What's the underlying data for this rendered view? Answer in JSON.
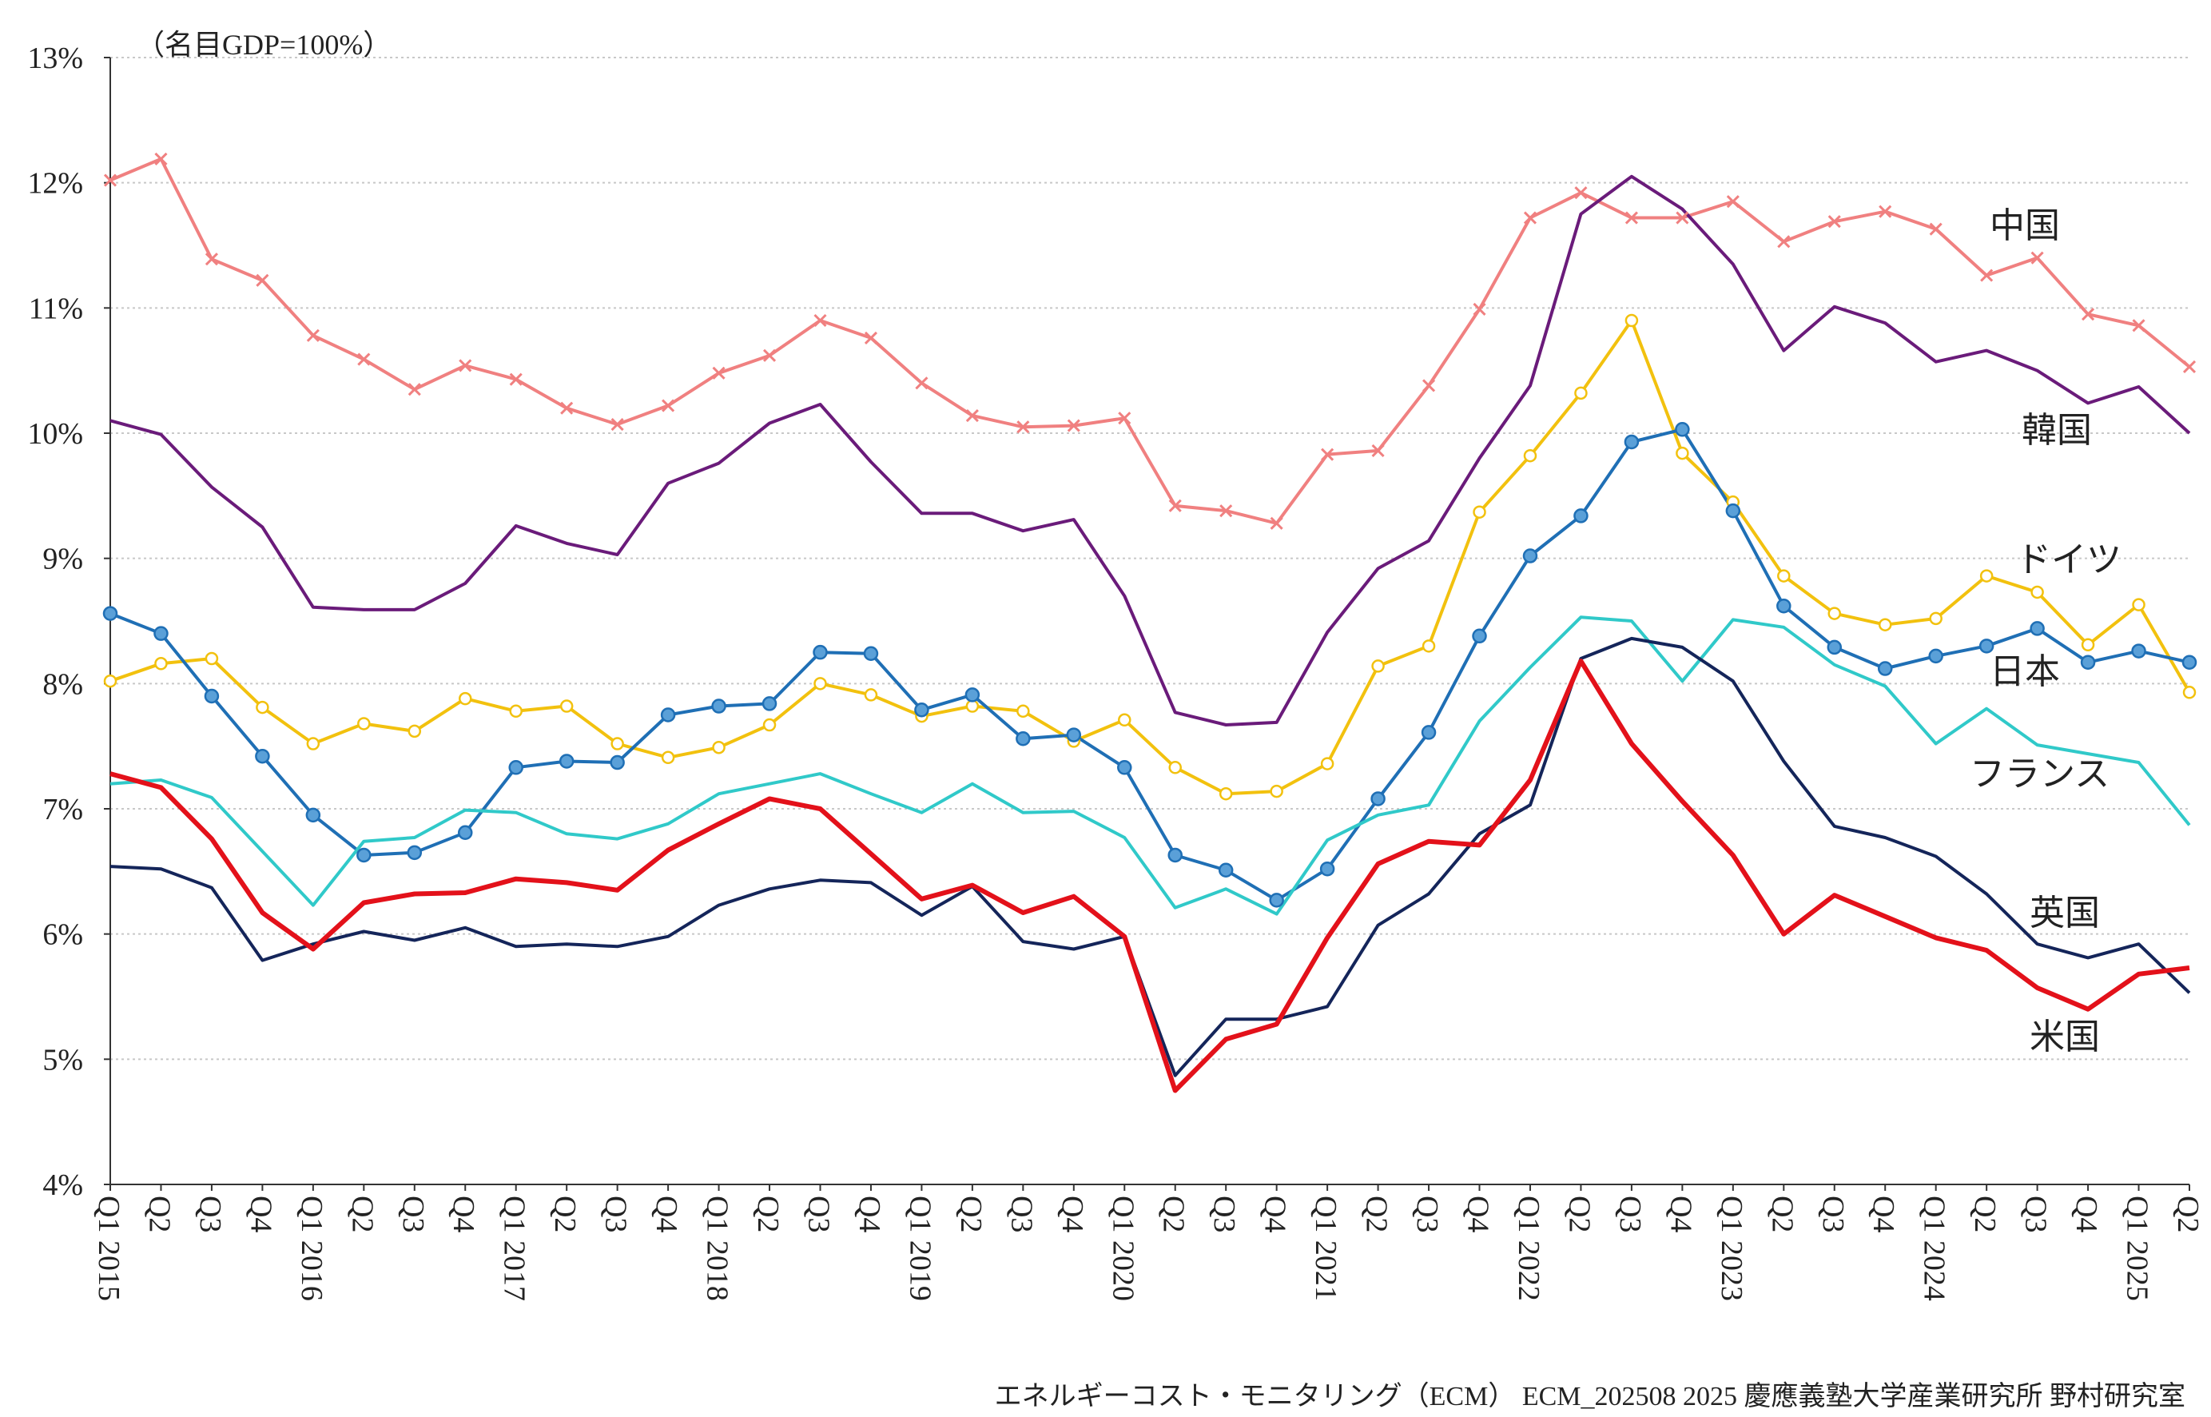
{
  "chart_data": {
    "type": "line",
    "unit_label": "（名目GDP=100%）",
    "ylim": [
      4,
      13
    ],
    "yticks": [
      "4%",
      "5%",
      "6%",
      "7%",
      "8%",
      "9%",
      "10%",
      "11%",
      "12%",
      "13%"
    ],
    "grid": "horizontal dotted",
    "quarters": [
      "Q1",
      "Q2",
      "Q3",
      "Q4",
      "Q1",
      "Q2",
      "Q3",
      "Q4",
      "Q1",
      "Q2",
      "Q3",
      "Q4",
      "Q1",
      "Q2",
      "Q3",
      "Q4",
      "Q1",
      "Q2",
      "Q3",
      "Q4",
      "Q1",
      "Q2",
      "Q3",
      "Q4",
      "Q1",
      "Q2",
      "Q3",
      "Q4",
      "Q1",
      "Q2",
      "Q3",
      "Q4",
      "Q1",
      "Q2",
      "Q3",
      "Q4",
      "Q1",
      "Q2",
      "Q3",
      "Q4",
      "Q1",
      "Q2"
    ],
    "years": [
      "2015",
      "2016",
      "2017",
      "2018",
      "2019",
      "2020",
      "2021",
      "2022",
      "2023",
      "2024",
      "2025"
    ],
    "series": [
      {
        "name": "中国",
        "color": "#f08080",
        "marker": "x",
        "values": [
          12.02,
          12.19,
          11.39,
          11.22,
          10.78,
          10.59,
          10.35,
          10.54,
          10.43,
          10.2,
          10.07,
          10.22,
          10.48,
          10.62,
          10.9,
          10.76,
          10.4,
          10.14,
          10.05,
          10.06,
          10.12,
          9.42,
          9.38,
          9.28,
          9.83,
          9.86,
          10.38,
          10.99,
          11.72,
          11.92,
          11.72,
          11.72,
          11.85,
          11.53,
          11.69,
          11.77,
          11.63,
          11.26,
          11.4,
          10.95,
          10.86,
          10.53
        ]
      },
      {
        "name": "韓国",
        "color": "#6a1b7a",
        "marker": "none",
        "values": [
          10.1,
          9.99,
          9.57,
          9.25,
          8.61,
          8.59,
          8.59,
          8.8,
          9.26,
          9.12,
          9.03,
          9.6,
          9.76,
          10.08,
          10.23,
          9.77,
          9.36,
          9.36,
          9.22,
          9.31,
          8.7,
          7.77,
          7.67,
          7.69,
          8.41,
          8.92,
          9.14,
          9.8,
          10.38,
          11.75,
          12.05,
          11.79,
          11.35,
          10.66,
          11.01,
          10.88,
          10.57,
          10.66,
          10.5,
          10.24,
          10.37,
          10.0
        ]
      },
      {
        "name": "ドイツ",
        "color": "#f2c10e",
        "marker": "circle-open",
        "values": [
          8.02,
          8.16,
          8.2,
          7.81,
          7.52,
          7.68,
          7.62,
          7.88,
          7.78,
          7.82,
          7.52,
          7.41,
          7.49,
          7.67,
          8.0,
          7.91,
          7.74,
          7.82,
          7.78,
          7.54,
          7.71,
          7.33,
          7.12,
          7.14,
          7.36,
          8.14,
          8.3,
          9.37,
          9.82,
          10.32,
          10.9,
          9.84,
          9.45,
          8.86,
          8.56,
          8.47,
          8.52,
          8.86,
          8.73,
          8.31,
          8.63,
          7.93
        ]
      },
      {
        "name": "日本",
        "color": "#1f6fb5",
        "marker": "circle-filled",
        "values": [
          8.56,
          8.4,
          7.9,
          7.42,
          6.95,
          6.63,
          6.65,
          6.81,
          7.33,
          7.38,
          7.37,
          7.75,
          7.82,
          7.84,
          8.25,
          8.24,
          7.79,
          7.91,
          7.56,
          7.59,
          7.33,
          6.63,
          6.51,
          6.27,
          6.52,
          7.08,
          7.61,
          8.38,
          9.02,
          9.34,
          9.93,
          10.03,
          9.38,
          8.62,
          8.29,
          8.12,
          8.22,
          8.3,
          8.44,
          8.17,
          8.26,
          8.17
        ]
      },
      {
        "name": "フランス",
        "color": "#30c9c9",
        "marker": "none",
        "values": [
          7.2,
          7.23,
          7.09,
          6.66,
          6.23,
          6.74,
          6.77,
          6.99,
          6.97,
          6.8,
          6.76,
          6.88,
          7.12,
          7.2,
          7.28,
          7.12,
          6.97,
          7.2,
          6.97,
          6.98,
          6.77,
          6.21,
          6.36,
          6.16,
          6.75,
          6.95,
          7.03,
          7.7,
          8.13,
          8.53,
          8.5,
          8.02,
          8.51,
          8.45,
          8.15,
          7.98,
          7.52,
          7.8,
          7.51,
          7.44,
          7.37,
          6.87
        ]
      },
      {
        "name": "英国",
        "color": "#14255a",
        "marker": "none",
        "values": [
          6.54,
          6.52,
          6.37,
          5.79,
          5.92,
          6.02,
          5.95,
          6.05,
          5.9,
          5.92,
          5.9,
          5.98,
          6.23,
          6.36,
          6.43,
          6.41,
          6.15,
          6.38,
          5.94,
          5.88,
          5.98,
          4.87,
          5.32,
          5.32,
          5.42,
          6.07,
          6.32,
          6.8,
          7.03,
          8.2,
          8.36,
          8.29,
          8.02,
          7.38,
          6.86,
          6.77,
          6.62,
          6.32,
          5.92,
          5.81,
          5.92,
          5.53
        ]
      },
      {
        "name": "米国",
        "color": "#e3111a",
        "marker": "none",
        "values": [
          7.28,
          7.17,
          6.76,
          6.17,
          5.88,
          6.25,
          6.32,
          6.33,
          6.44,
          6.41,
          6.35,
          6.67,
          6.88,
          7.08,
          7.0,
          6.64,
          6.28,
          6.39,
          6.17,
          6.3,
          5.98,
          4.75,
          5.16,
          5.28,
          5.97,
          6.56,
          6.74,
          6.71,
          7.23,
          8.18,
          7.52,
          7.06,
          6.63,
          6.0,
          6.31,
          6.14,
          5.97,
          5.87,
          5.57,
          5.4,
          5.68,
          5.73
        ]
      }
    ]
  },
  "footer": "エネルギーコスト・モニタリング（ECM） ECM_202508 2025 慶應義塾大学産業研究所 野村研究室"
}
